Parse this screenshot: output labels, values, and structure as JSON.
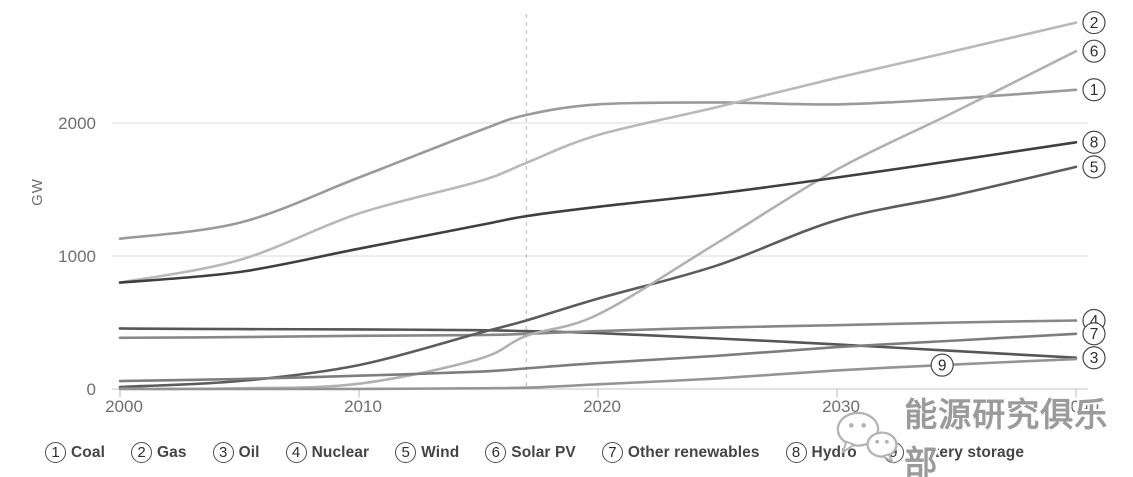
{
  "watermark": {
    "text": "能源研究俱乐部",
    "logo": "wechat-icon",
    "color": "#9b9b9b"
  },
  "chart_data": {
    "type": "line",
    "title": "",
    "xlabel": "",
    "ylabel": "GW",
    "xlim": [
      2000,
      2040
    ],
    "ylim": [
      0,
      2800
    ],
    "x_ticks": [
      2000,
      2010,
      2020,
      2030,
      2040
    ],
    "y_ticks": [
      0,
      1000,
      2000
    ],
    "grid": "horizontal",
    "divider_year": 2017,
    "legend_position": "bottom",
    "x": [
      2000,
      2005,
      2010,
      2015,
      2017,
      2020,
      2025,
      2030,
      2035,
      2040
    ],
    "series": [
      {
        "num": "1",
        "name": "Coal",
        "color": "#9a9a9a",
        "label": "right",
        "values": [
          1130,
          1250,
          1590,
          1940,
          2060,
          2140,
          2155,
          2140,
          2185,
          2250
        ]
      },
      {
        "num": "2",
        "name": "Gas",
        "color": "#b9b9b9",
        "label": "right",
        "values": [
          800,
          970,
          1320,
          1560,
          1700,
          1910,
          2120,
          2340,
          2545,
          2755
        ]
      },
      {
        "num": "3",
        "name": "Oil",
        "color": "#565656",
        "label": "right",
        "values": [
          455,
          450,
          448,
          442,
          435,
          420,
          380,
          335,
          285,
          235
        ]
      },
      {
        "num": "4",
        "name": "Nuclear",
        "color": "#878787",
        "label": "right",
        "values": [
          385,
          390,
          400,
          405,
          415,
          435,
          462,
          480,
          500,
          515
        ]
      },
      {
        "num": "5",
        "name": "Wind",
        "color": "#5c5c5c",
        "label": "right",
        "values": [
          15,
          60,
          180,
          420,
          515,
          680,
          930,
          1270,
          1460,
          1670
        ]
      },
      {
        "num": "6",
        "name": "Solar PV",
        "color": "#b1b1b1",
        "label": "right",
        "values": [
          1,
          5,
          40,
          225,
          400,
          560,
          1100,
          1650,
          2090,
          2540
        ]
      },
      {
        "num": "7",
        "name": "Other renewables",
        "color": "#7d7d7d",
        "label": "right",
        "values": [
          60,
          75,
          100,
          130,
          155,
          195,
          250,
          315,
          365,
          415
        ]
      },
      {
        "num": "8",
        "name": "Hydro",
        "color": "#3f3f3f",
        "label": "right",
        "values": [
          800,
          880,
          1055,
          1230,
          1300,
          1370,
          1470,
          1590,
          1720,
          1855
        ]
      },
      {
        "num": "9",
        "name": "Battery storage",
        "color": "#949494",
        "label": "inline",
        "label_year": 2034.4,
        "values": [
          0,
          0,
          1,
          5,
          10,
          35,
          80,
          140,
          185,
          225
        ]
      }
    ]
  }
}
